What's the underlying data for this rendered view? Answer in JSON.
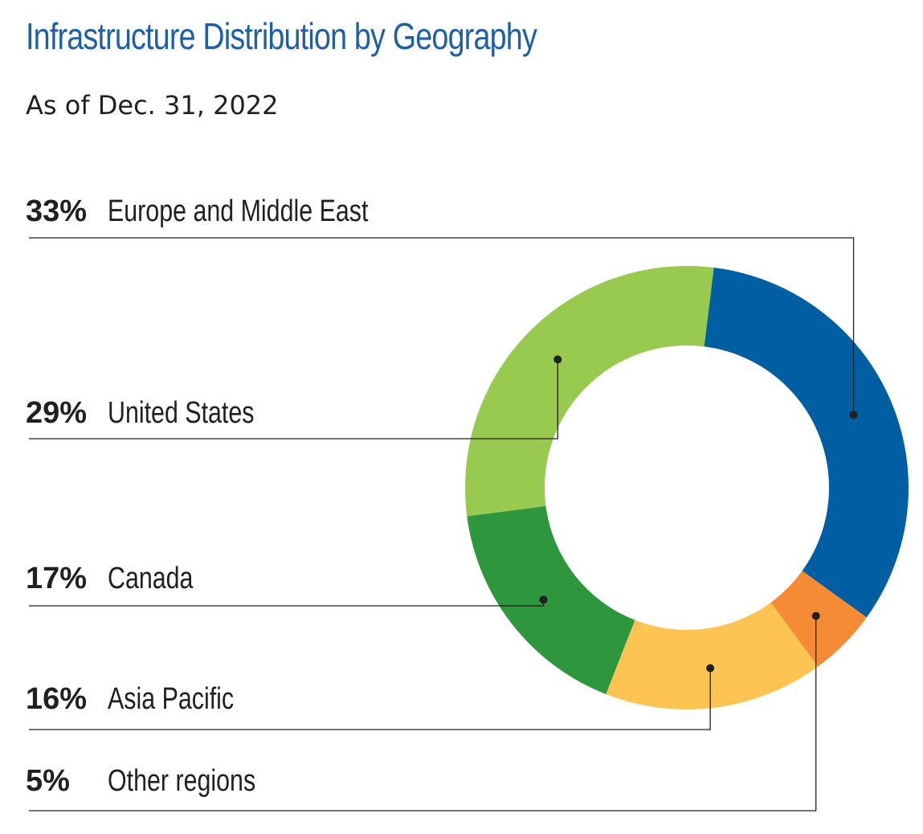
{
  "title": "Infrastructure Distribution by Geography",
  "subtitle": "As of Dec. 31, 2022",
  "chart_data": {
    "type": "pie",
    "style": "donut",
    "title": "Infrastructure Distribution by Geography",
    "subtitle": "As of Dec. 31, 2022",
    "unit": "%",
    "slices": [
      {
        "label": "Europe and Middle East",
        "value": 33,
        "display": "33%",
        "color": "#005fa3"
      },
      {
        "label": "Other regions",
        "value": 5,
        "display": "5%",
        "color": "#f58c35"
      },
      {
        "label": "Asia Pacific",
        "value": 16,
        "display": "16%",
        "color": "#fdc454"
      },
      {
        "label": "Canada",
        "value": 17,
        "display": "17%",
        "color": "#2e963d"
      },
      {
        "label": "United States",
        "value": 29,
        "display": "29%",
        "color": "#99ca50"
      }
    ],
    "legend_order": [
      "Europe and Middle East",
      "United States",
      "Canada",
      "Asia Pacific",
      "Other regions"
    ]
  }
}
